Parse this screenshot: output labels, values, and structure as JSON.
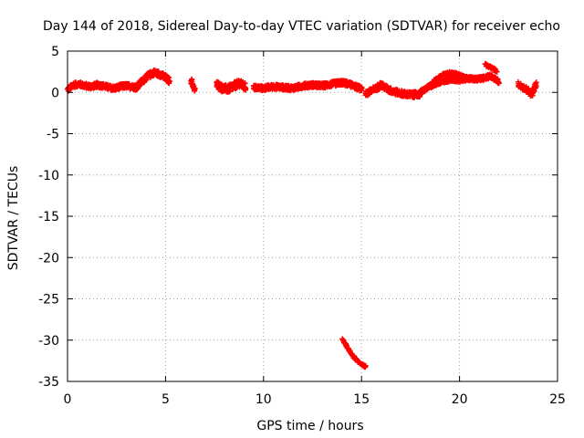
{
  "chart_data": {
    "type": "scatter",
    "title": "Day 144 of 2018, Sidereal Day-to-day VTEC variation (SDTVAR) for receiver echo",
    "xlabel": "GPS time / hours",
    "ylabel": "SDTVAR / TECUs",
    "xlim": [
      0,
      25
    ],
    "ylim": [
      -35,
      5
    ],
    "xticks": [
      0,
      5,
      10,
      15,
      20,
      25
    ],
    "yticks": [
      5,
      0,
      -5,
      -10,
      -15,
      -20,
      -25,
      -30,
      -35
    ],
    "grid": true,
    "marker": "+",
    "color": "#ff0000",
    "series": [
      {
        "name": "SDTVAR",
        "segments": [
          {
            "x": [
              0.0,
              0.3,
              0.6,
              0.9,
              1.2,
              1.5,
              1.8,
              2.1,
              2.4,
              2.7,
              3.0,
              3.3,
              3.5
            ],
            "y": [
              0.3,
              0.9,
              1.0,
              0.8,
              0.7,
              0.9,
              0.8,
              0.6,
              0.5,
              0.7,
              0.8,
              0.7,
              0.6
            ],
            "spread": 0.6
          },
          {
            "x": [
              3.5,
              3.8,
              4.1,
              4.4,
              4.7,
              5.0,
              5.2
            ],
            "y": [
              0.6,
              1.3,
              2.0,
              2.4,
              2.2,
              1.8,
              1.4
            ],
            "spread": 0.7
          },
          {
            "x": [
              6.3,
              6.4,
              6.5
            ],
            "y": [
              1.4,
              0.9,
              0.2
            ],
            "spread": 0.7
          },
          {
            "x": [
              7.6,
              7.9,
              8.2,
              8.5,
              8.8,
              9.1
            ],
            "y": [
              1.0,
              0.5,
              0.4,
              0.8,
              1.1,
              0.6
            ],
            "spread": 0.9
          },
          {
            "x": [
              9.5,
              10.0,
              10.5,
              11.0,
              11.5,
              12.0,
              12.5,
              13.0,
              13.5,
              14.0,
              14.5,
              15.0
            ],
            "y": [
              0.6,
              0.5,
              0.7,
              0.6,
              0.5,
              0.8,
              0.9,
              0.8,
              1.0,
              1.2,
              0.9,
              0.4
            ],
            "spread": 0.6
          },
          {
            "x": [
              14.0,
              14.2,
              14.4,
              14.6,
              14.8,
              15.0,
              15.2
            ],
            "y": [
              -29.8,
              -30.6,
              -31.4,
              -32.0,
              -32.5,
              -32.9,
              -33.2
            ],
            "spread": 0.25
          },
          {
            "x": [
              15.2,
              15.6,
              16.0,
              16.4,
              16.8,
              17.2,
              17.6,
              18.0
            ],
            "y": [
              -0.2,
              0.3,
              0.9,
              0.3,
              0.0,
              -0.2,
              -0.3,
              -0.2
            ],
            "spread": 0.7
          },
          {
            "x": [
              18.0,
              18.4,
              18.8,
              19.2,
              19.6,
              20.0,
              20.4,
              20.8,
              21.2,
              21.6,
              22.0
            ],
            "y": [
              0.0,
              0.6,
              1.1,
              1.4,
              1.6,
              1.5,
              1.7,
              1.6,
              1.7,
              2.0,
              1.3
            ],
            "spread": 0.5
          },
          {
            "x": [
              18.4,
              18.8,
              19.2,
              19.6,
              20.0,
              20.4
            ],
            "y": [
              0.7,
              1.6,
              2.2,
              2.4,
              2.1,
              1.7
            ],
            "spread": 0.3
          },
          {
            "x": [
              21.3,
              21.6,
              21.9
            ],
            "y": [
              3.4,
              3.0,
              2.6
            ],
            "spread": 0.3
          },
          {
            "x": [
              23.0,
              23.3,
              23.5,
              23.7,
              23.9
            ],
            "y": [
              1.0,
              0.5,
              0.2,
              -0.3,
              1.0
            ],
            "spread": 0.6
          }
        ]
      }
    ]
  }
}
